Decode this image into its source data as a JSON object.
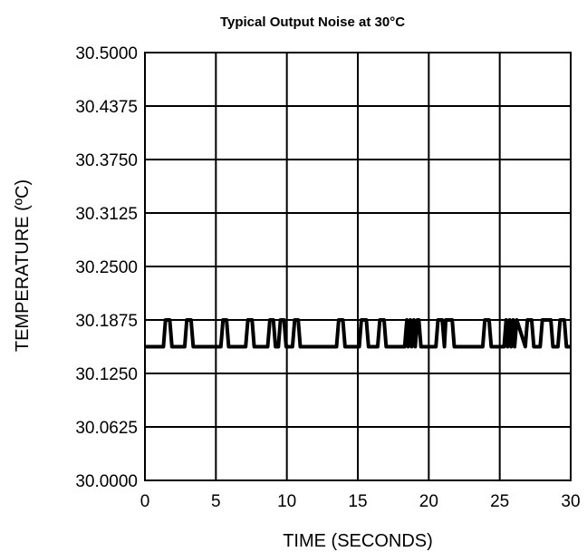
{
  "chart_data": {
    "type": "line",
    "title": "Typical Output Noise at 30°C",
    "xlabel": "TIME (SECONDS)",
    "ylabel": "TEMPERATURE (ºC)",
    "xlim": [
      0,
      30
    ],
    "ylim": [
      30.0,
      30.5
    ],
    "xticks": [
      "0",
      "5",
      "10",
      "15",
      "20",
      "25",
      "30"
    ],
    "yticks": [
      "30.5000",
      "30.4375",
      "30.3750",
      "30.3125",
      "30.2500",
      "30.1875",
      "30.1250",
      "30.0625",
      "30.0000"
    ],
    "grid": true,
    "series": [
      {
        "color": "#000000",
        "x": [
          0,
          1.3,
          1.45,
          1.75,
          1.9,
          2.8,
          2.95,
          3.25,
          3.4,
          5.35,
          5.5,
          5.75,
          5.9,
          7.1,
          7.25,
          7.55,
          7.7,
          8.65,
          8.8,
          9.05,
          9.2,
          9.4,
          9.55,
          9.8,
          9.95,
          10.4,
          10.55,
          10.8,
          10.95,
          13.5,
          13.65,
          13.95,
          14.1,
          15.1,
          15.25,
          15.6,
          15.75,
          16.4,
          16.55,
          16.85,
          17.0,
          18.3,
          18.45,
          18.55,
          18.7,
          18.8,
          18.95,
          19.05,
          19.2,
          19.3,
          19.45,
          20.5,
          20.65,
          20.95,
          21.1,
          21.2,
          21.35,
          21.65,
          21.8,
          23.8,
          23.95,
          24.25,
          24.4,
          25.3,
          25.45,
          25.55,
          25.7,
          25.8,
          25.95,
          26.05,
          26.2,
          26.8,
          26.95,
          27.25,
          27.4,
          27.85,
          28.0,
          28.6,
          28.75,
          29.1,
          29.25,
          29.55,
          29.7,
          30.0
        ],
        "y": [
          30.1562,
          30.1562,
          30.1875,
          30.1875,
          30.1562,
          30.1562,
          30.1875,
          30.1875,
          30.1562,
          30.1562,
          30.1875,
          30.1875,
          30.1562,
          30.1562,
          30.1875,
          30.1875,
          30.1562,
          30.1562,
          30.1875,
          30.1875,
          30.1562,
          30.1562,
          30.1875,
          30.1875,
          30.1562,
          30.1562,
          30.1875,
          30.1875,
          30.1562,
          30.1562,
          30.1875,
          30.1875,
          30.1562,
          30.1562,
          30.1875,
          30.1875,
          30.1562,
          30.1562,
          30.1875,
          30.1875,
          30.1562,
          30.1562,
          30.1875,
          30.1562,
          30.1875,
          30.1562,
          30.1875,
          30.1562,
          30.1875,
          30.1875,
          30.1562,
          30.1562,
          30.1875,
          30.1875,
          30.1562,
          30.1875,
          30.1875,
          30.1875,
          30.1562,
          30.1562,
          30.1875,
          30.1875,
          30.1562,
          30.1562,
          30.1875,
          30.1562,
          30.1875,
          30.1562,
          30.1875,
          30.1562,
          30.1875,
          30.1562,
          30.1875,
          30.1875,
          30.1562,
          30.1562,
          30.1875,
          30.1875,
          30.1562,
          30.1562,
          30.1875,
          30.1875,
          30.1562,
          30.1562
        ]
      }
    ]
  }
}
